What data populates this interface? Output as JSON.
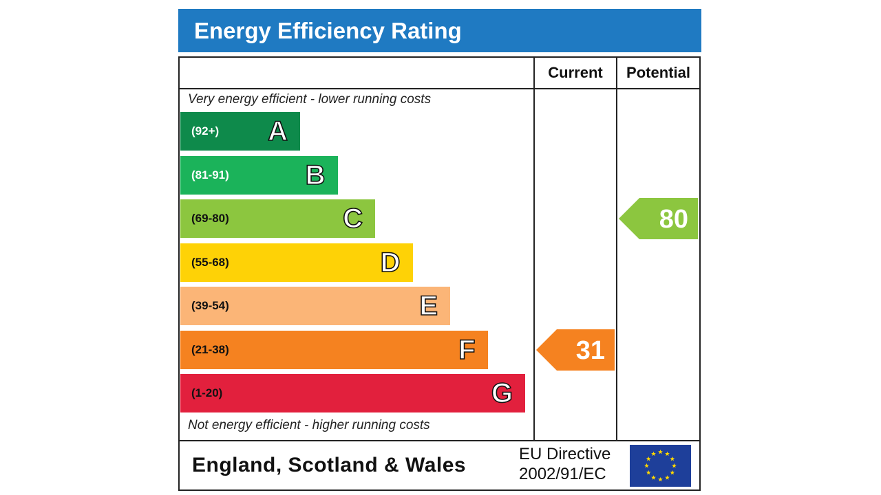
{
  "chart_data": {
    "type": "bar",
    "title": "Energy Efficiency Rating",
    "columns": [
      "Current",
      "Potential"
    ],
    "top_caption": "Very energy efficient - lower running costs",
    "bottom_caption": "Not energy efficient - higher running costs",
    "bands": [
      {
        "letter": "A",
        "range": "(92+)",
        "min": 92,
        "max": 100,
        "color": "#0e8a4b",
        "range_color": "#ffffff"
      },
      {
        "letter": "B",
        "range": "(81-91)",
        "min": 81,
        "max": 91,
        "color": "#1bb35a",
        "range_color": "#ffffff"
      },
      {
        "letter": "C",
        "range": "(69-80)",
        "min": 69,
        "max": 80,
        "color": "#8cc63f",
        "range_color": "#111111"
      },
      {
        "letter": "D",
        "range": "(55-68)",
        "min": 55,
        "max": 68,
        "color": "#fed206",
        "range_color": "#111111"
      },
      {
        "letter": "E",
        "range": "(39-54)",
        "min": 39,
        "max": 54,
        "color": "#fbb577",
        "range_color": "#111111"
      },
      {
        "letter": "F",
        "range": "(21-38)",
        "min": 21,
        "max": 38,
        "color": "#f58220",
        "range_color": "#111111"
      },
      {
        "letter": "G",
        "range": "(1-20)",
        "min": 1,
        "max": 20,
        "color": "#e2203d",
        "range_color": "#111111"
      }
    ],
    "current": {
      "value": 31,
      "band": "F",
      "color": "#f58220"
    },
    "potential": {
      "value": 80,
      "band": "C",
      "color": "#8cc63f"
    }
  },
  "footer": {
    "region": "England, Scotland & Wales",
    "directive_line1": "EU Directive",
    "directive_line2": "2002/91/EC",
    "flag_icon": "eu-flag-icon"
  }
}
